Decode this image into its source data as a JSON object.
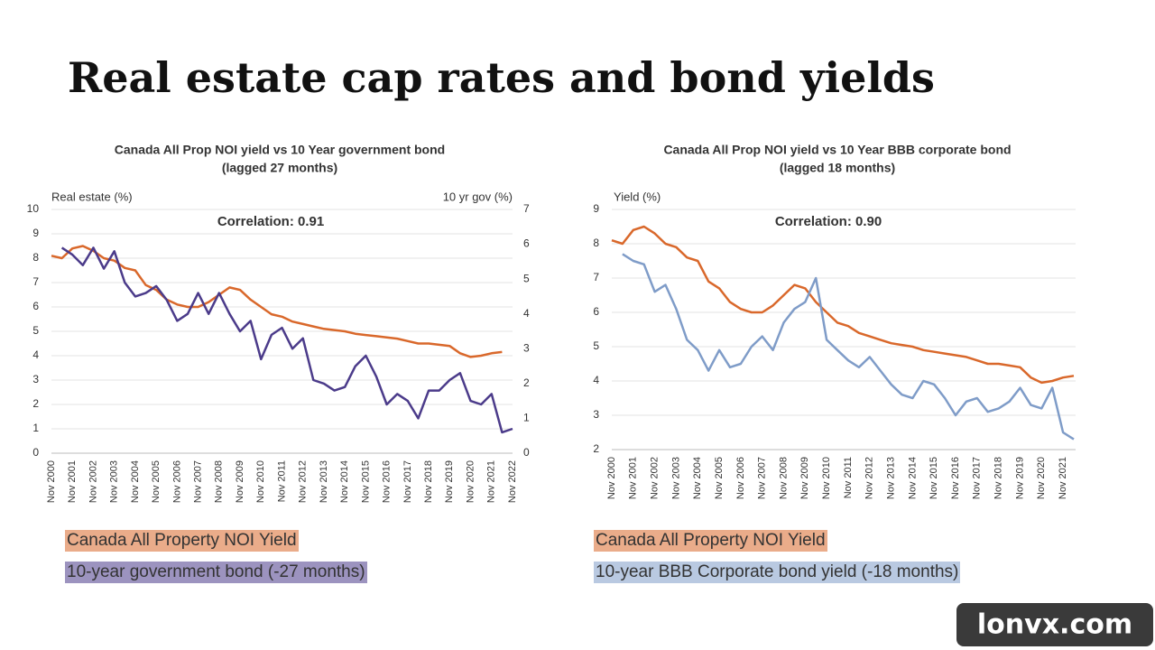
{
  "title": "Real estate cap rates and bond yields",
  "watermark": "lonvx.com",
  "chart_data": [
    {
      "type": "line",
      "title": "Canada All Prop NOI yield vs 10 Year government bond",
      "subtitle": "(lagged 27 months)",
      "annotation": "Correlation: 0.91",
      "y_label": "Real estate (%)",
      "y2_label": "10 yr gov (%)",
      "categories": [
        "Nov 2000",
        null,
        "Nov 2001",
        null,
        "Nov 2002",
        null,
        "Nov 2003",
        null,
        "Nov 2004",
        null,
        "Nov 2005",
        null,
        "Nov 2006",
        null,
        "Nov 2007",
        null,
        "Nov 2008",
        null,
        "Nov 2009",
        null,
        "Nov 2010",
        null,
        "Nov 2011",
        null,
        "Nov 2012",
        null,
        "Nov 2013",
        null,
        "Nov 2014",
        null,
        "Nov 2015",
        null,
        "Nov 2016",
        null,
        "Nov 2017",
        null,
        "Nov 2018",
        null,
        "Nov 2019",
        null,
        "Nov 2020",
        null,
        "Nov 2021",
        null,
        "Nov 2022"
      ],
      "series": [
        {
          "name": "Canada All Property NOI Yield",
          "color": "#d9682b",
          "axis": "y",
          "values": [
            8.1,
            8.0,
            8.4,
            8.5,
            8.3,
            8.0,
            7.9,
            7.6,
            7.5,
            6.9,
            6.7,
            6.3,
            6.1,
            6.0,
            6.0,
            6.2,
            6.5,
            6.8,
            6.7,
            6.3,
            6.0,
            5.7,
            5.6,
            5.4,
            5.3,
            5.2,
            5.1,
            5.05,
            5.0,
            4.9,
            4.85,
            4.8,
            4.75,
            4.7,
            4.6,
            4.5,
            4.5,
            4.45,
            4.4,
            4.1,
            3.95,
            4.0,
            4.1,
            4.15,
            null
          ]
        },
        {
          "name": "10-year government bond (-27 months)",
          "color": "#4b3b8a",
          "axis": "y2",
          "values": [
            null,
            5.9,
            5.7,
            5.4,
            5.9,
            5.3,
            5.8,
            4.9,
            4.5,
            4.6,
            4.8,
            4.4,
            3.8,
            4.0,
            4.6,
            4.0,
            4.6,
            4.0,
            3.5,
            3.8,
            2.7,
            3.4,
            3.6,
            3.0,
            3.3,
            2.1,
            2.0,
            1.8,
            1.9,
            2.5,
            2.8,
            2.2,
            1.4,
            1.7,
            1.5,
            1.0,
            1.8,
            1.8,
            2.1,
            2.3,
            1.5,
            1.4,
            1.7,
            0.6,
            0.7
          ]
        }
      ],
      "ylim": [
        0,
        10
      ],
      "yticks": [
        0,
        1,
        2,
        3,
        4,
        5,
        6,
        7,
        8,
        9,
        10
      ],
      "y2lim": [
        0,
        7
      ],
      "y2ticks": [
        0,
        1,
        2,
        3,
        4,
        5,
        6,
        7
      ],
      "grid": true
    },
    {
      "type": "line",
      "title": "Canada All Prop NOI yield vs 10 Year BBB corporate  bond",
      "subtitle": "(lagged 18 months)",
      "annotation": "Correlation: 0.90",
      "y_label": "Yield (%)",
      "categories": [
        "Nov 2000",
        null,
        "Nov 2001",
        null,
        "Nov 2002",
        null,
        "Nov 2003",
        null,
        "Nov 2004",
        null,
        "Nov 2005",
        null,
        "Nov 2006",
        null,
        "Nov 2007",
        null,
        "Nov 2008",
        null,
        "Nov 2009",
        null,
        "Nov 2010",
        null,
        "Nov 2011",
        null,
        "Nov 2012",
        null,
        "Nov 2013",
        null,
        "Nov 2014",
        null,
        "Nov 2015",
        null,
        "Nov 2016",
        null,
        "Nov 2017",
        null,
        "Nov 2018",
        null,
        "Nov 2019",
        null,
        "Nov 2020",
        null,
        "Nov 2021",
        null
      ],
      "series": [
        {
          "name": "Canada All Property NOI Yield",
          "color": "#d9682b",
          "axis": "y",
          "values": [
            8.1,
            8.0,
            8.4,
            8.5,
            8.3,
            8.0,
            7.9,
            7.6,
            7.5,
            6.9,
            6.7,
            6.3,
            6.1,
            6.0,
            6.0,
            6.2,
            6.5,
            6.8,
            6.7,
            6.3,
            6.0,
            5.7,
            5.6,
            5.4,
            5.3,
            5.2,
            5.1,
            5.05,
            5.0,
            4.9,
            4.85,
            4.8,
            4.75,
            4.7,
            4.6,
            4.5,
            4.5,
            4.45,
            4.4,
            4.1,
            3.95,
            4.0,
            4.1,
            4.15
          ]
        },
        {
          "name": "10-year BBB Corporate bond yield (-18 months)",
          "color": "#7f9cc8",
          "axis": "y",
          "values": [
            null,
            7.7,
            7.5,
            7.4,
            6.6,
            6.8,
            6.1,
            5.2,
            4.9,
            4.3,
            4.9,
            4.4,
            4.5,
            5.0,
            5.3,
            4.9,
            5.7,
            6.1,
            6.3,
            7.0,
            5.2,
            4.9,
            4.6,
            4.4,
            4.7,
            4.3,
            3.9,
            3.6,
            3.5,
            4.0,
            3.9,
            3.5,
            3.0,
            3.4,
            3.5,
            3.1,
            3.2,
            3.4,
            3.8,
            3.3,
            3.2,
            3.8,
            2.5,
            2.3
          ]
        }
      ],
      "ylim": [
        2,
        9
      ],
      "yticks": [
        2,
        3,
        4,
        5,
        6,
        7,
        8,
        9
      ],
      "grid": true
    }
  ]
}
